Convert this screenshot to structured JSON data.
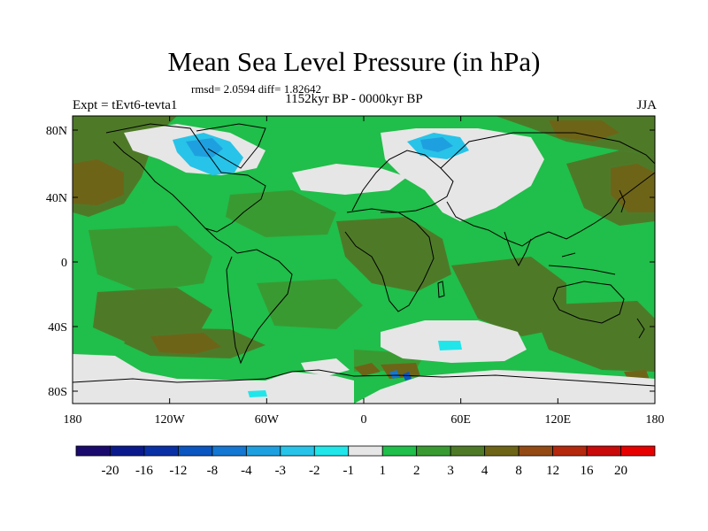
{
  "title": "Mean Sea Level Pressure (in hPa)",
  "stats_line": "rmsd= 2.0594 diff= 1.82642",
  "experiment": "Expt = tEvt6-tevta1",
  "period": "1152kyr BP - 0000kyr BP",
  "season": "JJA",
  "x_ticks": [
    "180",
    "120W",
    "60W",
    "0",
    "60E",
    "120E",
    "180"
  ],
  "y_ticks": [
    "80N",
    "40N",
    "0",
    "40S",
    "80S"
  ],
  "legend": {
    "labels": [
      "-20",
      "-16",
      "-12",
      "-8",
      "-4",
      "-3",
      "-2",
      "-1",
      "1",
      "2",
      "3",
      "4",
      "8",
      "12",
      "16",
      "20"
    ],
    "colors": [
      "#1a0a6e",
      "#0a1a8c",
      "#0a30a6",
      "#0a55c0",
      "#1478d2",
      "#1ea0e0",
      "#28c3e8",
      "#20e6ea",
      "#e6e6e6",
      "#20be4a",
      "#3a9a32",
      "#4e7a28",
      "#6e6418",
      "#944a14",
      "#b4280e",
      "#c80a0a",
      "#e60000"
    ]
  },
  "colors": {
    "ocean_green": "#20be4a",
    "mid_green": "#3a9a32",
    "olive": "#4e7a28",
    "brown": "#6e6418",
    "light_grey": "#e6e6e6",
    "cyan": "#20e6ea",
    "light_blue": "#28c3e8"
  }
}
